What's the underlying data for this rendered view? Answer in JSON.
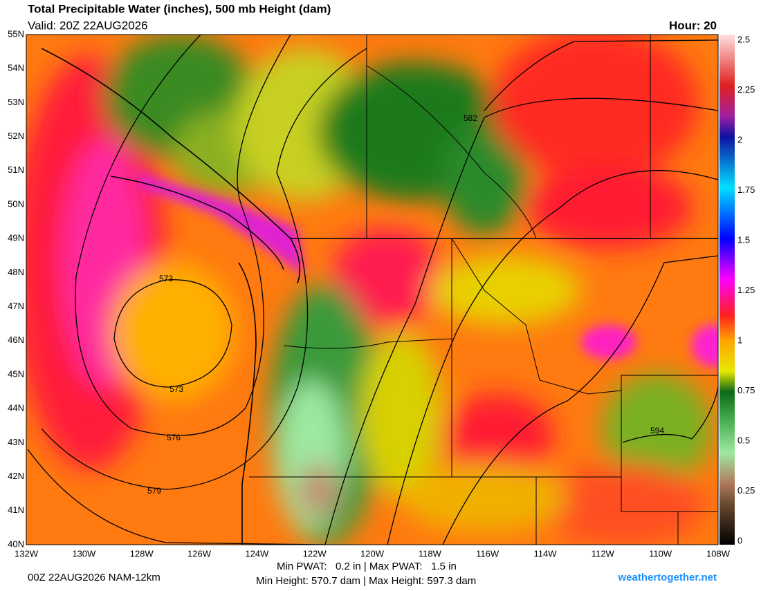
{
  "header": {
    "title": "Total Precipitable Water (inches), 500 mb Height (dam)",
    "valid": "Valid: 20Z 22AUG2026",
    "hour": "Hour: 20"
  },
  "map": {
    "lat_labels": [
      "55N",
      "54N",
      "53N",
      "52N",
      "51N",
      "50N",
      "49N",
      "48N",
      "47N",
      "46N",
      "45N",
      "44N",
      "43N",
      "42N",
      "41N",
      "40N"
    ],
    "lon_labels": [
      "132W",
      "130W",
      "128W",
      "126W",
      "124W",
      "122W",
      "120W",
      "118W",
      "116W",
      "114W",
      "112W",
      "110W",
      "108W"
    ],
    "contour_labels": [
      "582",
      "573",
      "573",
      "576",
      "579",
      "594"
    ]
  },
  "colorbar": {
    "labels": [
      "2.5",
      "2.25",
      "2",
      "1.75",
      "1.5",
      "1.25",
      "1",
      "0.75",
      "0.5",
      "0.25",
      "0"
    ]
  },
  "footer": {
    "init": "00Z 22AUG2026 NAM-12km",
    "stats_line1": "Min PWAT:   0.2 in | Max PWAT:   1.5 in",
    "stats_line2": "Min Height: 570.7 dam | Max Height: 597.3 dam",
    "site": "weathertogether.net"
  }
}
